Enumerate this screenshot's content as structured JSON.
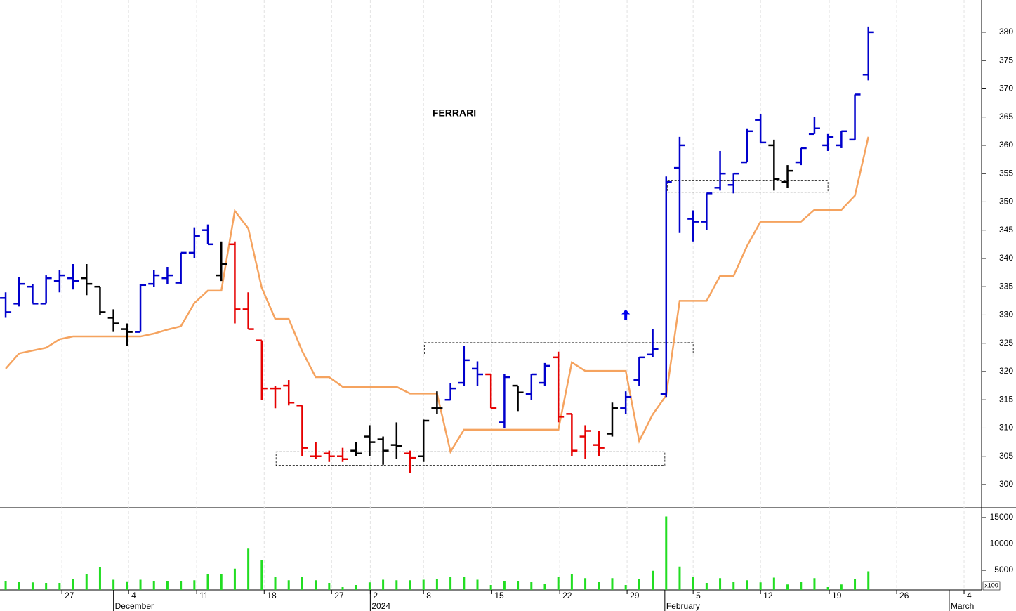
{
  "chart_data": {
    "type": "ohlc",
    "title": "FERRARI",
    "xlim": [
      -0.42,
      72.4
    ],
    "xticks": [
      {
        "value": 4.17,
        "label": "27"
      },
      {
        "value": 9.12,
        "label": "4"
      },
      {
        "value": 14.17,
        "label": "11"
      },
      {
        "value": 19.18,
        "label": "18"
      },
      {
        "value": 24.18,
        "label": "27"
      },
      {
        "value": 27.05,
        "label": "2"
      },
      {
        "value": 31.0,
        "label": "8"
      },
      {
        "value": 36.06,
        "label": "15"
      },
      {
        "value": 41.1,
        "label": "22"
      },
      {
        "value": 46.1,
        "label": "29"
      },
      {
        "value": 51.0,
        "label": "5"
      },
      {
        "value": 56.0,
        "label": "12"
      },
      {
        "value": 61.1,
        "label": "19"
      },
      {
        "value": 66.1,
        "label": "26"
      },
      {
        "value": 71.1,
        "label": "4"
      }
    ],
    "month_ticks": [
      {
        "value": 8.0,
        "label": "December"
      },
      {
        "value": 27.05,
        "label": "2024"
      },
      {
        "value": 48.9,
        "label": "February"
      },
      {
        "value": 70.0,
        "label": "March"
      }
    ],
    "ylim": [
      295.9,
      385.7
    ],
    "yticks": [
      300,
      305,
      310,
      315,
      320,
      325,
      330,
      335,
      340,
      345,
      350,
      355,
      360,
      365,
      370,
      375,
      380
    ],
    "open": [
      333,
      332,
      335,
      332,
      336,
      336.5,
      336.5,
      335,
      329.5,
      327.5,
      327,
      335.5,
      336.5,
      335.7,
      341,
      345,
      337,
      342.5,
      331,
      325.5,
      317,
      317.5,
      314,
      305,
      305.5,
      305,
      306,
      308.5,
      308,
      307,
      305.5,
      305,
      313.5,
      315,
      318,
      320.5,
      319.5,
      311,
      317.5,
      316,
      318,
      322.5,
      312.5,
      308.5,
      307,
      309,
      313.5,
      318.5,
      323,
      316,
      356,
      347,
      346.5,
      352.5,
      353,
      357,
      364.5,
      360,
      353.5,
      357,
      362,
      360,
      360,
      361,
      372.5
    ],
    "high": [
      334,
      336.7,
      335.5,
      337,
      338,
      339,
      339,
      335,
      331,
      328.5,
      335.5,
      338,
      338.5,
      341,
      345.5,
      346,
      343,
      343,
      334,
      325.5,
      317.5,
      318.5,
      314,
      307.5,
      306,
      306.5,
      307.5,
      310.5,
      308.5,
      311,
      306,
      311.5,
      316.5,
      318,
      324.5,
      321.8,
      319.5,
      319.5,
      317.5,
      319.5,
      321.5,
      323.5,
      312.5,
      310.5,
      309.5,
      314.5,
      316.5,
      322.5,
      327.5,
      354.5,
      361.5,
      348.5,
      351.5,
      359,
      355,
      363,
      365.5,
      361,
      356.5,
      359.5,
      365,
      362,
      362.5,
      369,
      381
    ],
    "low": [
      329.5,
      331.5,
      332,
      332,
      334,
      334.5,
      333.5,
      330,
      327,
      324.5,
      327,
      335,
      335.5,
      335.5,
      340,
      342.5,
      336,
      328.5,
      327.5,
      315,
      313.5,
      314,
      305,
      304.5,
      304,
      304,
      305,
      305,
      303.5,
      304.5,
      302,
      304,
      312.5,
      315,
      317.5,
      317.5,
      313.5,
      310,
      313,
      315,
      317.5,
      311,
      305,
      304.5,
      305,
      308.5,
      312.5,
      317.5,
      322.5,
      315.5,
      344.5,
      343,
      345,
      352,
      351.5,
      357,
      360.5,
      352,
      352.5,
      356.5,
      362,
      359,
      359.5,
      361,
      371.5
    ],
    "close": [
      330.5,
      335.5,
      332,
      336.5,
      337,
      336,
      335.5,
      330.5,
      328.5,
      327,
      335.3,
      337,
      337,
      341,
      344,
      342.5,
      339,
      331,
      327.5,
      317,
      317,
      314.5,
      306.5,
      305,
      305,
      304.5,
      305.5,
      307.5,
      306,
      306.8,
      304.7,
      311.3,
      313.5,
      317,
      322,
      319.5,
      313.5,
      319,
      316.3,
      319.5,
      321,
      312,
      306,
      309.5,
      306.5,
      313.5,
      315.5,
      322.5,
      324,
      353.5,
      360,
      346.5,
      351.5,
      355,
      355,
      362.5,
      360.5,
      354,
      355.5,
      359.5,
      363,
      361.5,
      362.5,
      369,
      380
    ],
    "bar_colors": [
      "#0000cc",
      "#0000cc",
      "#0000cc",
      "#0000cc",
      "#0000cc",
      "#0000cc",
      "#000000",
      "#000000",
      "#000000",
      "#000000",
      "#0000cc",
      "#0000cc",
      "#0000cc",
      "#0000cc",
      "#0000cc",
      "#0000cc",
      "#000000",
      "#e60000",
      "#e60000",
      "#e60000",
      "#e60000",
      "#e60000",
      "#e60000",
      "#e60000",
      "#e60000",
      "#e60000",
      "#000000",
      "#000000",
      "#000000",
      "#000000",
      "#e60000",
      "#000000",
      "#000000",
      "#0000cc",
      "#0000cc",
      "#0000cc",
      "#e60000",
      "#0000cc",
      "#000000",
      "#0000cc",
      "#0000cc",
      "#e60000",
      "#e60000",
      "#e60000",
      "#e60000",
      "#000000",
      "#0000cc",
      "#0000cc",
      "#0000cc",
      "#0000cc",
      "#0000cc",
      "#0000cc",
      "#0000cc",
      "#0000cc",
      "#0000cc",
      "#0000cc",
      "#0000cc",
      "#000000",
      "#000000",
      "#0000cc",
      "#0000cc",
      "#0000cc",
      "#0000cc",
      "#0000cc",
      "#0000cc"
    ],
    "line": {
      "color": "#f5a35f",
      "values": [
        320.5,
        323.2,
        323.7,
        324.2,
        325.7,
        326.2,
        326.2,
        326.2,
        326.2,
        326.2,
        326.2,
        326.7,
        327.4,
        328,
        332.1,
        334.3,
        334.3,
        348.4,
        345.3,
        334.8,
        329.3,
        329.3,
        323.6,
        319,
        319,
        317.3,
        317.3,
        317.3,
        317.3,
        317.3,
        316.1,
        316.1,
        316.1,
        305.8,
        309.7,
        309.7,
        309.7,
        309.7,
        309.7,
        309.7,
        309.7,
        309.7,
        321.6,
        320.1,
        320.1,
        320.1,
        320.1,
        307.7,
        312.4,
        315.8,
        332.5,
        332.5,
        332.5,
        336.9,
        336.9,
        342.2,
        346.5,
        346.5,
        346.5,
        346.5,
        348.6,
        348.6,
        348.6,
        351.1,
        361.5
      ]
    },
    "zones": [
      {
        "x": [
          20.06,
          48.9
        ],
        "y": [
          303.4,
          305.8
        ]
      },
      {
        "x": [
          31.06,
          51.0
        ],
        "y": [
          322.9,
          325.1
        ]
      },
      {
        "x": [
          49.1,
          61.0
        ],
        "y": [
          351.7,
          353.7
        ]
      }
    ],
    "arrow": {
      "x": 46.0,
      "y": 330,
      "color": "#0000ee"
    },
    "volume": {
      "color": "#22dd22",
      "multiplier": "x100",
      "ylim": [
        1267,
        16867
      ],
      "yticks": [
        5000,
        10000,
        15000
      ],
      "values": [
        3000,
        2800,
        2700,
        2600,
        2600,
        3300,
        4300,
        5600,
        3200,
        2900,
        3200,
        3000,
        3000,
        3000,
        3100,
        4300,
        4300,
        5300,
        9100,
        7000,
        3700,
        3100,
        3700,
        3100,
        2600,
        1800,
        2200,
        2700,
        3200,
        3100,
        3100,
        3200,
        3400,
        3800,
        3800,
        3200,
        2200,
        3000,
        3000,
        2800,
        2400,
        3700,
        4200,
        3500,
        2800,
        3500,
        2200,
        3300,
        4900,
        15200,
        5700,
        3700,
        2600,
        3500,
        2800,
        3100,
        2700,
        3600,
        2300,
        2800,
        3500,
        1800,
        2300,
        3400,
        4800
      ]
    }
  }
}
